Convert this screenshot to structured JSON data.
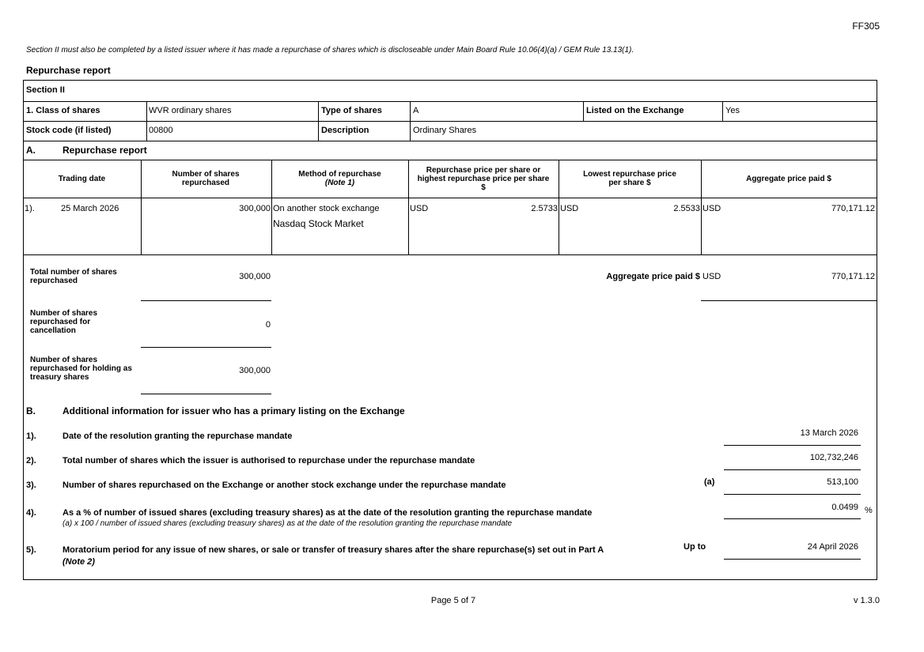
{
  "form_code": "FF305",
  "intro_note": "Section II must also be completed by a listed issuer where it has made a repurchase of shares which is discloseable under Main Board Rule 10.06(4)(a) / GEM Rule 13.13(1).",
  "report_title": "Repurchase report",
  "section_label": "Section II",
  "info": {
    "class_label": "1. Class of shares",
    "class_value": "WVR ordinary shares",
    "type_label": "Type of shares",
    "type_value": "A",
    "listed_label": "Listed on the Exchange",
    "listed_value": "Yes",
    "stock_code_label": "Stock code (if listed)",
    "stock_code_value": "00800",
    "description_label": "Description",
    "description_value": "Ordinary Shares"
  },
  "part_a": {
    "letter": "A.",
    "title": "Repurchase report",
    "headers": {
      "trading_date": "Trading date",
      "number": "Number of shares repurchased",
      "method": "Method of repurchase",
      "method_note": "(Note 1)",
      "highest": "Repurchase price per share or highest repurchase price per share $",
      "lowest": "Lowest repurchase price per share $",
      "aggregate": "Aggregate price paid $"
    },
    "rows": [
      {
        "index": "1).",
        "date": "25 March 2026",
        "shares": "300,000",
        "method": "On another stock exchange",
        "exchange": "Nasdaq Stock Market",
        "high_ccy": "USD",
        "high": "2.5733",
        "low_ccy": "USD",
        "low": "2.5533",
        "agg_ccy": "USD",
        "agg": "770,171.12"
      }
    ],
    "total_label": "Total number of shares repurchased",
    "total_value": "300,000",
    "agg_total_label": "Aggregate price paid $",
    "agg_total_ccy": "USD",
    "agg_total_value": "770,171.12",
    "cancel_label": "Number of shares repurchased for cancellation",
    "cancel_value": "0",
    "treasury_label": "Number of shares repurchased for holding as treasury shares",
    "treasury_value": "300,000"
  },
  "part_b": {
    "letter": "B.",
    "title": "Additional information for issuer who has a primary listing on the Exchange",
    "items": [
      {
        "index": "1).",
        "label": "Date of the resolution granting the repurchase mandate",
        "value": "13 March 2026"
      },
      {
        "index": "2).",
        "label": "Total number of shares which the issuer is authorised to repurchase under the repurchase mandate",
        "value": "102,732,246"
      },
      {
        "index": "3).",
        "label": "Number of shares repurchased on the Exchange or another stock exchange under the repurchase mandate",
        "tag": "(a)",
        "value": "513,100"
      },
      {
        "index": "4).",
        "label": "As a % of number of issued shares (excluding treasury shares) as at the date of the resolution granting the repurchase mandate",
        "sub": "(a) x 100 / number of issued shares (excluding treasury shares) as at the date of the resolution granting the repurchase mandate",
        "value": "0.0499",
        "unit": "%"
      },
      {
        "index": "5).",
        "label": "Moratorium period for any issue of new shares, or sale or transfer of treasury shares after the share repurchase(s) set out in Part A",
        "note": "(Note 2)",
        "tag": "Up to",
        "value": "24 April 2026"
      }
    ]
  },
  "footer": {
    "page": "Page 5 of 7",
    "version": "v 1.3.0"
  }
}
